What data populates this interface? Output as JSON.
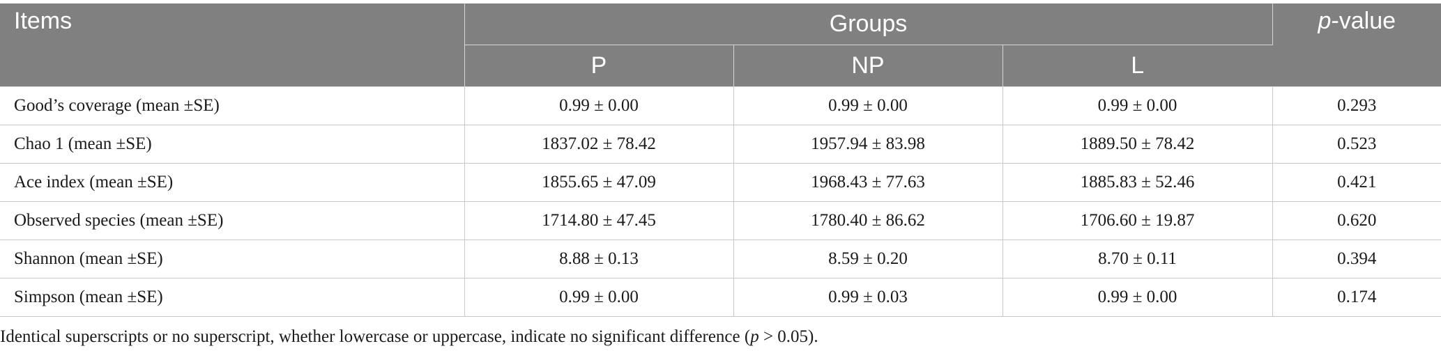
{
  "table": {
    "header": {
      "items": "Items",
      "groups": "Groups",
      "pvalue_var": "p",
      "pvalue_rest": "-value",
      "subgroups": [
        "P",
        "NP",
        "L"
      ]
    },
    "rows": [
      {
        "item": "Good’s coverage (mean ±SE)",
        "p": "0.99 ± 0.00",
        "np": "0.99 ± 0.00",
        "l": "0.99 ± 0.00",
        "pvalue": "0.293"
      },
      {
        "item": "Chao 1 (mean ±SE)",
        "p": "1837.02 ± 78.42",
        "np": "1957.94 ± 83.98",
        "l": "1889.50 ± 78.42",
        "pvalue": "0.523"
      },
      {
        "item": "Ace index (mean ±SE)",
        "p": "1855.65 ± 47.09",
        "np": "1968.43 ± 77.63",
        "l": "1885.83 ± 52.46",
        "pvalue": "0.421"
      },
      {
        "item": "Observed species (mean ±SE)",
        "p": "1714.80 ± 47.45",
        "np": "1780.40 ± 86.62",
        "l": "1706.60 ± 19.87",
        "pvalue": "0.620"
      },
      {
        "item": "Shannon (mean ±SE)",
        "p": "8.88 ± 0.13",
        "np": "8.59 ± 0.20",
        "l": "8.70 ± 0.11",
        "pvalue": "0.394"
      },
      {
        "item": "Simpson (mean ±SE)",
        "p": "0.99 ± 0.00",
        "np": "0.99 ± 0.03",
        "l": "0.99 ± 0.00",
        "pvalue": "0.174"
      }
    ]
  },
  "footnote": {
    "before": "Identical superscripts or no superscript, whether lowercase or uppercase, indicate no significant difference (",
    "var": "p",
    "after": " > 0.05)."
  },
  "colors": {
    "header_bg": "#808080",
    "header_text": "#ffffff",
    "grid": "#c8c8c8"
  }
}
